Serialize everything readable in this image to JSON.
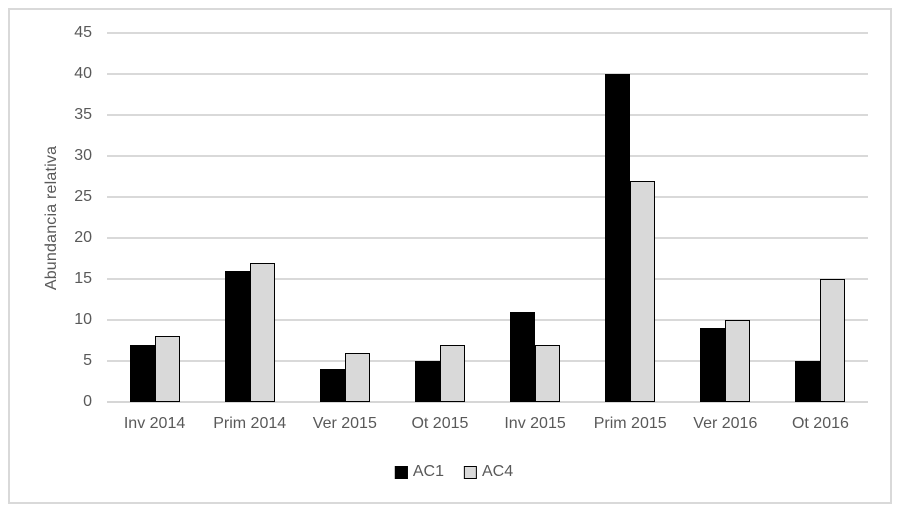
{
  "chart_data": {
    "type": "bar",
    "title": "",
    "xlabel": "",
    "ylabel": "Abundancia relativa",
    "categories": [
      "Inv 2014",
      "Prim 2014",
      "Ver 2015",
      "Ot 2015",
      "Inv 2015",
      "Prim 2015",
      "Ver 2016",
      "Ot 2016"
    ],
    "series": [
      {
        "name": "AC1",
        "color": "#000000",
        "border_color": "#000000",
        "values": [
          7,
          16,
          4,
          5,
          11,
          40,
          9,
          5
        ]
      },
      {
        "name": "AC4",
        "color": "#d9d9d9",
        "border_color": "#000000",
        "values": [
          8,
          17,
          6,
          7,
          7,
          27,
          10,
          15
        ]
      }
    ],
    "ylim": [
      0,
      45
    ],
    "ytick_step": 5,
    "grid": true,
    "legend_position": "bottom",
    "text_color": "#595959",
    "grid_color": "#d9d9d9",
    "frame_color": "#d9d9d9"
  }
}
